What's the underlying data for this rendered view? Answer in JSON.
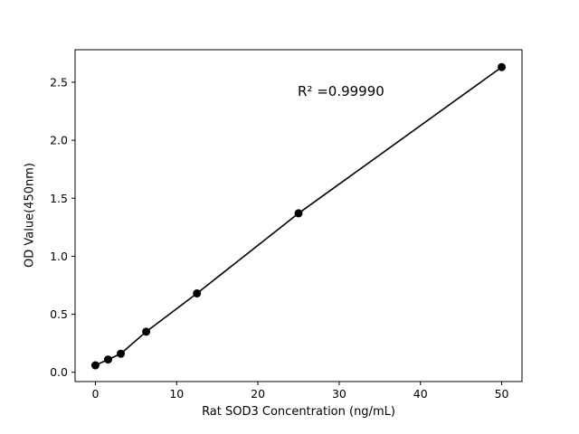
{
  "figure": {
    "background": "#ffffff",
    "foreground": "#000000"
  },
  "chart_data": {
    "type": "scatter",
    "title": "",
    "xlabel": "Rat SOD3 Concentration (ng/mL)",
    "ylabel": "OD Value(450nm)",
    "annotation": "R² =0.99990",
    "x": [
      0,
      1.5625,
      3.125,
      6.25,
      12.5,
      25,
      50
    ],
    "y": [
      0.06,
      0.11,
      0.16,
      0.35,
      0.68,
      1.37,
      2.63
    ],
    "line_through_points": true,
    "marker": "circle",
    "marker_color": "#000000",
    "line_color": "#000000",
    "xlim": [
      -2.5,
      52.5
    ],
    "ylim": [
      -0.08,
      2.78
    ],
    "xtick_values": [
      0,
      10,
      20,
      30,
      40,
      50
    ],
    "xtick_labels": [
      "0",
      "10",
      "20",
      "30",
      "40",
      "50"
    ],
    "ytick_values": [
      0,
      0.5,
      1.0,
      1.5,
      2.0,
      2.5
    ],
    "ytick_labels": [
      "0.0",
      "0.5",
      "1.0",
      "1.5",
      "2.0",
      "2.5"
    ],
    "grid": false,
    "legend_position": "none"
  }
}
